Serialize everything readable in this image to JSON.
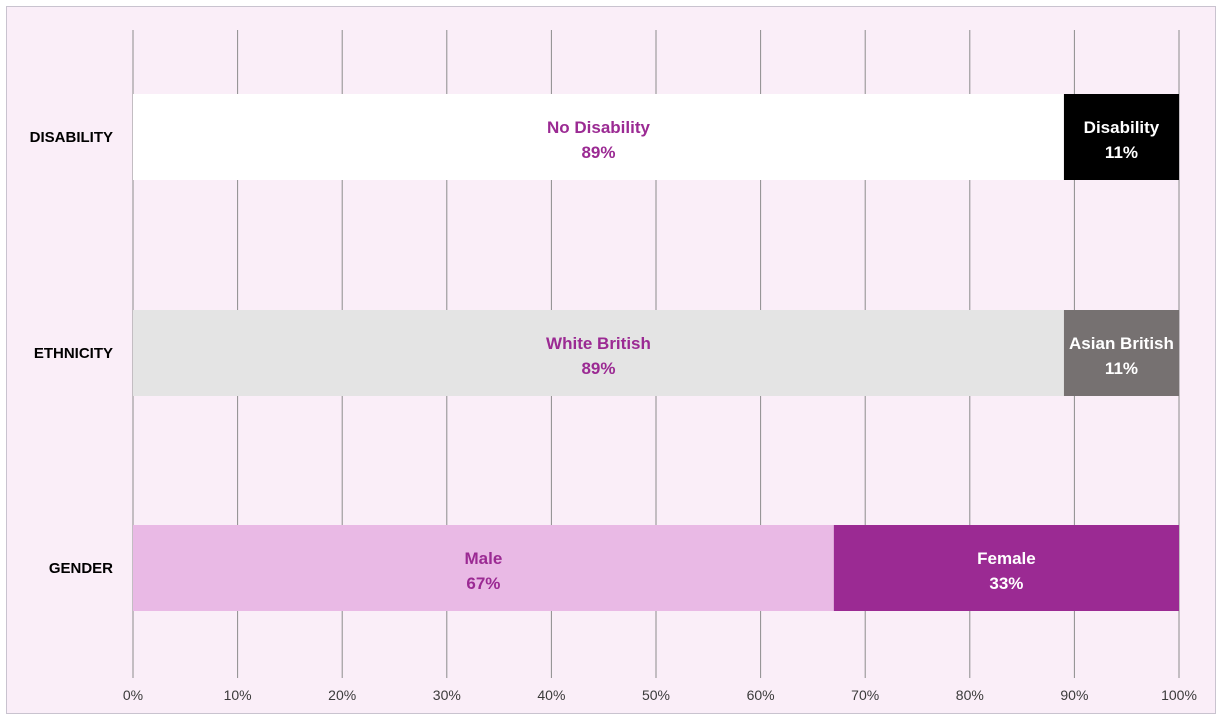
{
  "chart_data": {
    "type": "bar",
    "orientation": "horizontal",
    "stacked": true,
    "title": "",
    "xlabel": "",
    "ylabel": "",
    "xlim": [
      0,
      100
    ],
    "grid": true,
    "legend": "none",
    "x_ticks": [
      "0%",
      "10%",
      "20%",
      "30%",
      "40%",
      "50%",
      "60%",
      "70%",
      "80%",
      "90%",
      "100%"
    ],
    "bars": [
      {
        "category": "DISABILITY",
        "segments": [
          {
            "label": "No Disability",
            "value": 89,
            "value_label": "89%",
            "color": "#ffffff",
            "text_color": "#9b2a93"
          },
          {
            "label": "Disability",
            "value": 11,
            "value_label": "11%",
            "color": "#000000",
            "text_color": "#ffffff"
          }
        ]
      },
      {
        "category": "ETHNICITY",
        "segments": [
          {
            "label": "White British",
            "value": 89,
            "value_label": "89%",
            "color": "#e4e4e4",
            "text_color": "#9b2a93"
          },
          {
            "label": "Asian British",
            "value": 11,
            "value_label": "11%",
            "color": "#767171",
            "text_color": "#ffffff"
          }
        ]
      },
      {
        "category": "GENDER",
        "segments": [
          {
            "label": "Male",
            "value": 67,
            "value_label": "67%",
            "color": "#e9b9e5",
            "text_color": "#9b2a93"
          },
          {
            "label": "Female",
            "value": 33,
            "value_label": "33%",
            "color": "#9b2a93",
            "text_color": "#ffffff"
          }
        ]
      }
    ]
  }
}
